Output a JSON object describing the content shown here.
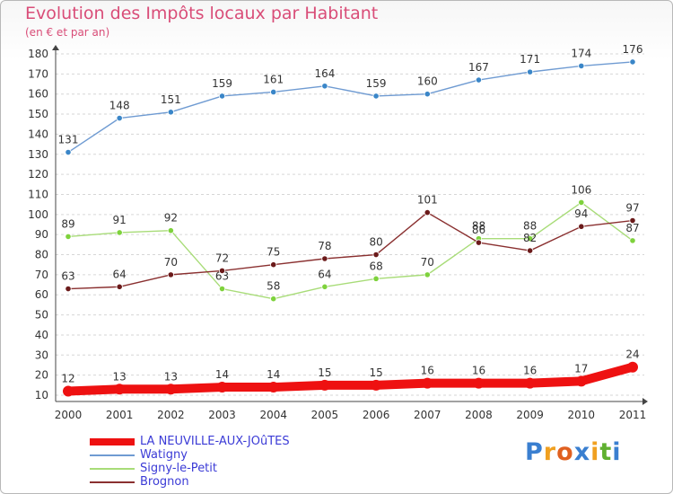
{
  "chart_data": {
    "type": "line",
    "title": "Evolution des Impôts locaux par Habitant",
    "subtitle": "(en € et par an)",
    "xlabel": "",
    "ylabel": "",
    "ylim": [
      10,
      180
    ],
    "yticks": [
      10,
      20,
      30,
      40,
      50,
      60,
      70,
      80,
      90,
      100,
      110,
      120,
      130,
      140,
      150,
      160,
      170,
      180
    ],
    "grid": "horizontal dashed",
    "categories": [
      "2000",
      "2001",
      "2002",
      "2003",
      "2004",
      "2005",
      "2006",
      "2007",
      "2008",
      "2009",
      "2010",
      "2011"
    ],
    "series": [
      {
        "name": "LA NEUVILLE-AUX-JOûTES",
        "color": "#ee1111",
        "emphasis": "thick",
        "values": [
          12,
          13,
          13,
          14,
          14,
          15,
          15,
          16,
          16,
          16,
          17,
          24
        ]
      },
      {
        "name": "Watigny",
        "color": "#6f9bd2",
        "marker": "#3a86c8",
        "values": [
          131,
          148,
          151,
          159,
          161,
          164,
          159,
          160,
          167,
          171,
          174,
          176
        ]
      },
      {
        "name": "Signy-le-Petit",
        "color": "#a8dc78",
        "marker": "#7ed23c",
        "values": [
          89,
          91,
          92,
          63,
          58,
          64,
          68,
          70,
          88,
          88,
          106,
          87
        ]
      },
      {
        "name": "Brognon",
        "color": "#8a3030",
        "marker": "#6b1a1a",
        "values": [
          63,
          64,
          70,
          72,
          75,
          78,
          80,
          101,
          86,
          82,
          94,
          97
        ]
      }
    ],
    "legend_position": "bottom-left"
  },
  "logo": {
    "letters": [
      "P",
      "r",
      "o",
      "x",
      "i",
      "t",
      "i"
    ],
    "colors": [
      "#3a7fd0",
      "#f0a020",
      "#e06020",
      "#3a7fd0",
      "#f0a020",
      "#60b030",
      "#3a7fd0"
    ]
  }
}
